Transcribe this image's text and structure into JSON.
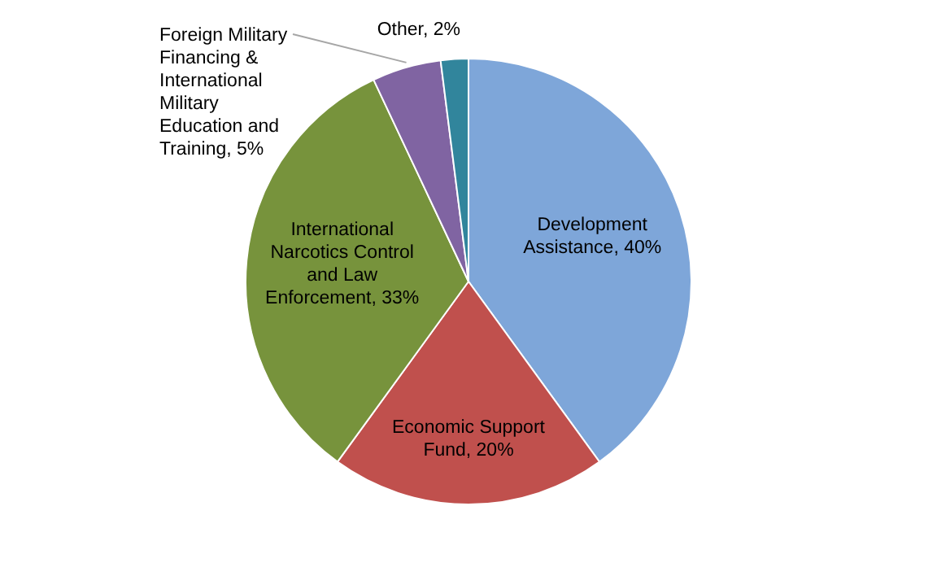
{
  "chart_data": {
    "type": "pie",
    "categories": [
      "Development Assistance",
      "Economic Support Fund",
      "International Narcotics Control and Law Enforcement",
      "Foreign Military Financing & International Military Education and Training",
      "Other"
    ],
    "values": [
      40,
      20,
      33,
      5,
      2
    ],
    "value_labels": [
      "40%",
      "20%",
      "33%",
      "5%",
      "2%"
    ],
    "colors": [
      "#7ea6d9",
      "#c0504d",
      "#77933c",
      "#8064a2",
      "#31859c"
    ]
  }
}
